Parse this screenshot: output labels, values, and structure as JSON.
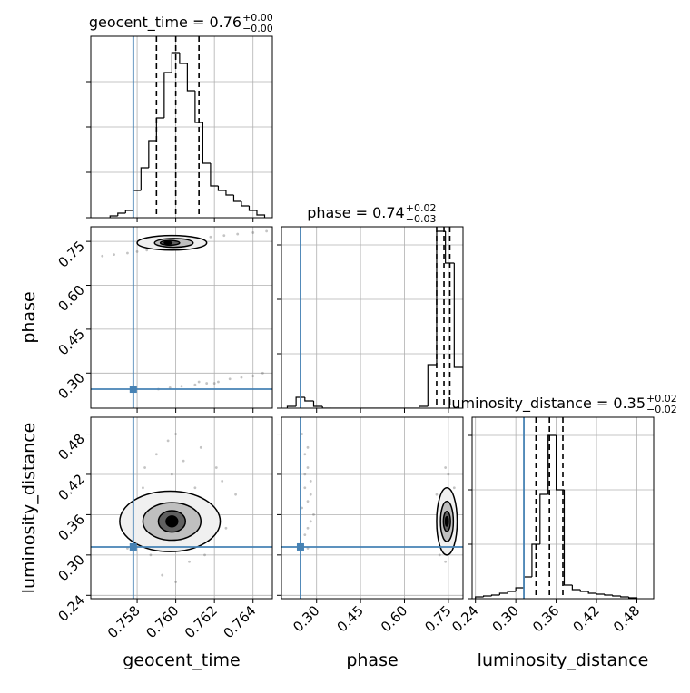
{
  "chart_data": [
    {
      "type": "histogram",
      "title": "geocent_time = 0.76",
      "title_upper": "+0.00",
      "title_lower": "−0.00",
      "bins": [
        0.7566,
        0.757,
        0.7574,
        0.7578,
        0.7582,
        0.7586,
        0.759,
        0.7594,
        0.7598,
        0.7602,
        0.7606,
        0.761,
        0.7614,
        0.7618,
        0.7622,
        0.7626,
        0.763,
        0.7634,
        0.7638,
        0.7642,
        0.7646
      ],
      "counts": [
        2,
        5,
        8,
        30,
        55,
        85,
        110,
        160,
        182,
        170,
        140,
        105,
        60,
        35,
        30,
        25,
        18,
        13,
        8,
        3
      ],
      "quantiles": [
        0.759,
        0.76,
        0.7612
      ],
      "truth": 0.7578,
      "xlim": [
        0.7556,
        0.765
      ],
      "ylim": [
        0,
        200
      ],
      "xticks": [
        0.758,
        {
          "value": 0.76,
          "label": "0.760"
        },
        0.762,
        0.764
      ],
      "yticks": [
        0,
        50,
        100,
        150
      ],
      "xtick_labels": false,
      "ytick_labels": false,
      "grid": true,
      "color": "#000000",
      "truth_color": "#4682b4"
    },
    {
      "type": "scatter",
      "ylabel": "phase",
      "x": [
        0.7562,
        0.7568,
        0.7575,
        0.758,
        0.7585,
        0.759,
        0.7593,
        0.7596,
        0.76,
        0.7603,
        0.7607,
        0.7612,
        0.7618,
        0.7625,
        0.7632,
        0.764,
        0.7647,
        0.7588,
        0.7599,
        0.7606,
        0.7591,
        0.7597,
        0.7603,
        0.761,
        0.7616,
        0.7622,
        0.7628,
        0.7634,
        0.764,
        0.7645,
        0.7612,
        0.762
      ],
      "y": [
        0.7,
        0.705,
        0.71,
        0.715,
        0.72,
        0.725,
        0.735,
        0.74,
        0.745,
        0.745,
        0.75,
        0.755,
        0.765,
        0.77,
        0.775,
        0.78,
        0.785,
        0.73,
        0.75,
        0.74,
        0.245,
        0.25,
        0.255,
        0.26,
        0.265,
        0.27,
        0.28,
        0.285,
        0.29,
        0.3,
        0.27,
        0.265
      ],
      "contours": [
        {
          "cx": 0.7598,
          "cy": 0.745,
          "rx": 0.0018,
          "ry": 0.025,
          "fill": "#f0f0f0"
        },
        {
          "cx": 0.7599,
          "cy": 0.745,
          "rx": 0.001,
          "ry": 0.015,
          "fill": "#bfbfbf"
        },
        {
          "cx": 0.7597,
          "cy": 0.745,
          "rx": 0.0005,
          "ry": 0.008,
          "fill": "#606060"
        },
        {
          "cx": 0.7596,
          "cy": 0.745,
          "rx": 0.0002,
          "ry": 0.004,
          "fill": "#000000"
        }
      ],
      "truths": {
        "x": 0.7578,
        "y": 0.245
      },
      "xlim": [
        0.7556,
        0.765
      ],
      "ylim": [
        0.18,
        0.8
      ],
      "xticks": [
        0.758,
        {
          "value": 0.76,
          "label": "0.760"
        },
        0.762,
        0.764
      ],
      "yticks": [
        {
          "value": 0.3,
          "label": "0.30"
        },
        0.45,
        {
          "value": 0.6,
          "label": "0.60"
        },
        0.75
      ],
      "xtick_labels": false,
      "ytick_labels": true,
      "grid": true,
      "color": "#555555",
      "truth_color": "#4682b4"
    },
    {
      "type": "histogram",
      "title": "phase = 0.74",
      "title_upper": "+0.02",
      "title_lower": "−0.03",
      "bins": [
        0.2,
        0.23,
        0.26,
        0.29,
        0.32,
        0.35,
        0.38,
        0.41,
        0.44,
        0.47,
        0.5,
        0.53,
        0.56,
        0.59,
        0.62,
        0.65,
        0.68,
        0.71,
        0.74,
        0.77,
        0.8
      ],
      "counts": [
        2,
        12,
        8,
        2,
        0,
        0,
        0,
        0,
        0,
        0,
        0,
        0,
        0,
        0,
        0,
        2,
        48,
        195,
        160,
        45
      ],
      "quantiles": [
        0.71,
        0.735,
        0.755
      ],
      "truth": 0.245,
      "xlim": [
        0.18,
        0.8
      ],
      "ylim": [
        0,
        200
      ],
      "xticks": [
        {
          "value": 0.3,
          "label": "0.30"
        },
        0.45,
        {
          "value": 0.6,
          "label": "0.60"
        },
        0.75
      ],
      "yticks": [
        0,
        60,
        120,
        180
      ],
      "xtick_labels": false,
      "ytick_labels": false,
      "grid": true,
      "color": "#000000",
      "truth_color": "#4682b4"
    },
    {
      "type": "scatter",
      "xlabel": "geocent_time",
      "ylabel": "luminosity_distance",
      "x": [
        0.7572,
        0.7578,
        0.7583,
        0.7587,
        0.759,
        0.7593,
        0.7595,
        0.7598,
        0.76,
        0.7602,
        0.7604,
        0.7607,
        0.761,
        0.7613,
        0.7617,
        0.7621,
        0.7626,
        0.7631,
        0.7575,
        0.7588,
        0.7596,
        0.7605,
        0.7615,
        0.7624,
        0.76,
        0.7592,
        0.7609,
        0.7584,
        0.7619,
        0.7603
      ],
      "y": [
        0.36,
        0.33,
        0.4,
        0.3,
        0.45,
        0.27,
        0.38,
        0.42,
        0.48,
        0.32,
        0.44,
        0.29,
        0.4,
        0.46,
        0.37,
        0.43,
        0.34,
        0.39,
        0.31,
        0.35,
        0.47,
        0.36,
        0.3,
        0.41,
        0.26,
        0.33,
        0.38,
        0.43,
        0.35,
        0.31
      ],
      "contours": [
        {
          "cx": 0.7597,
          "cy": 0.35,
          "rx": 0.0026,
          "ry": 0.045,
          "fill": "#f0f0f0"
        },
        {
          "cx": 0.7598,
          "cy": 0.35,
          "rx": 0.0015,
          "ry": 0.028,
          "fill": "#bfbfbf"
        },
        {
          "cx": 0.7598,
          "cy": 0.35,
          "rx": 0.0007,
          "ry": 0.016,
          "fill": "#606060"
        },
        {
          "cx": 0.7598,
          "cy": 0.35,
          "rx": 0.0003,
          "ry": 0.008,
          "fill": "#000000"
        }
      ],
      "truths": {
        "x": 0.7578,
        "y": 0.312
      },
      "xlim": [
        0.7556,
        0.765
      ],
      "ylim": [
        0.235,
        0.505
      ],
      "xticks": [
        0.758,
        {
          "value": 0.76,
          "label": "0.760"
        },
        0.762,
        0.764
      ],
      "yticks": [
        0.24,
        {
          "value": 0.3,
          "label": "0.30"
        },
        0.36,
        0.42,
        0.48
      ],
      "xtick_labels": true,
      "ytick_labels": true,
      "grid": true,
      "color": "#555555",
      "truth_color": "#4682b4"
    },
    {
      "type": "scatter",
      "xlabel": "phase",
      "x": [
        0.25,
        0.26,
        0.27,
        0.28,
        0.26,
        0.27,
        0.25,
        0.28,
        0.27,
        0.26,
        0.29,
        0.27,
        0.26,
        0.28,
        0.27,
        0.72,
        0.73,
        0.74,
        0.75,
        0.76,
        0.77,
        0.74,
        0.75,
        0.73,
        0.76,
        0.78,
        0.71,
        0.75,
        0.74,
        0.77
      ],
      "y": [
        0.48,
        0.45,
        0.43,
        0.41,
        0.4,
        0.38,
        0.37,
        0.35,
        0.34,
        0.33,
        0.36,
        0.31,
        0.42,
        0.39,
        0.46,
        0.3,
        0.33,
        0.36,
        0.34,
        0.38,
        0.4,
        0.29,
        0.42,
        0.37,
        0.31,
        0.35,
        0.39,
        0.32,
        0.43,
        0.36
      ],
      "contours": [
        {
          "cx": 0.745,
          "cy": 0.35,
          "rx": 0.035,
          "ry": 0.05,
          "fill": "#f0f0f0"
        },
        {
          "cx": 0.745,
          "cy": 0.35,
          "rx": 0.022,
          "ry": 0.03,
          "fill": "#bfbfbf"
        },
        {
          "cx": 0.745,
          "cy": 0.35,
          "rx": 0.012,
          "ry": 0.015,
          "fill": "#606060"
        },
        {
          "cx": 0.745,
          "cy": 0.35,
          "rx": 0.005,
          "ry": 0.007,
          "fill": "#000000"
        }
      ],
      "truths": {
        "x": 0.245,
        "y": 0.312
      },
      "xlim": [
        0.18,
        0.8
      ],
      "ylim": [
        0.235,
        0.505
      ],
      "xticks": [
        {
          "value": 0.3,
          "label": "0.30"
        },
        0.45,
        {
          "value": 0.6,
          "label": "0.60"
        },
        0.75
      ],
      "yticks": [
        0.24,
        {
          "value": 0.3,
          "label": "0.30"
        },
        0.36,
        0.42,
        0.48
      ],
      "xtick_labels": true,
      "ytick_labels": false,
      "grid": true,
      "color": "#555555",
      "truth_color": "#4682b4"
    },
    {
      "type": "histogram",
      "xlabel": "luminosity_distance",
      "title": "luminosity_distance = 0.35",
      "title_upper": "+0.02",
      "title_lower": "−0.02",
      "bins": [
        0.24,
        0.252,
        0.264,
        0.276,
        0.288,
        0.3,
        0.312,
        0.324,
        0.336,
        0.348,
        0.36,
        0.372,
        0.384,
        0.396,
        0.408,
        0.42,
        0.432,
        0.444,
        0.456,
        0.468,
        0.48
      ],
      "counts": [
        2,
        3,
        4,
        6,
        8,
        12,
        24,
        60,
        115,
        180,
        120,
        15,
        10,
        8,
        6,
        5,
        4,
        3,
        2,
        1
      ],
      "quantiles": [
        0.33,
        0.35,
        0.37
      ],
      "truth": 0.312,
      "xlim": [
        0.235,
        0.505
      ],
      "ylim": [
        0,
        200
      ],
      "xticks": [
        0.24,
        {
          "value": 0.3,
          "label": "0.30"
        },
        0.36,
        0.42,
        0.48
      ],
      "yticks": [
        0,
        60,
        120,
        180
      ],
      "xtick_labels": true,
      "ytick_labels": false,
      "grid": true,
      "color": "#000000",
      "truth_color": "#4682b4"
    }
  ]
}
